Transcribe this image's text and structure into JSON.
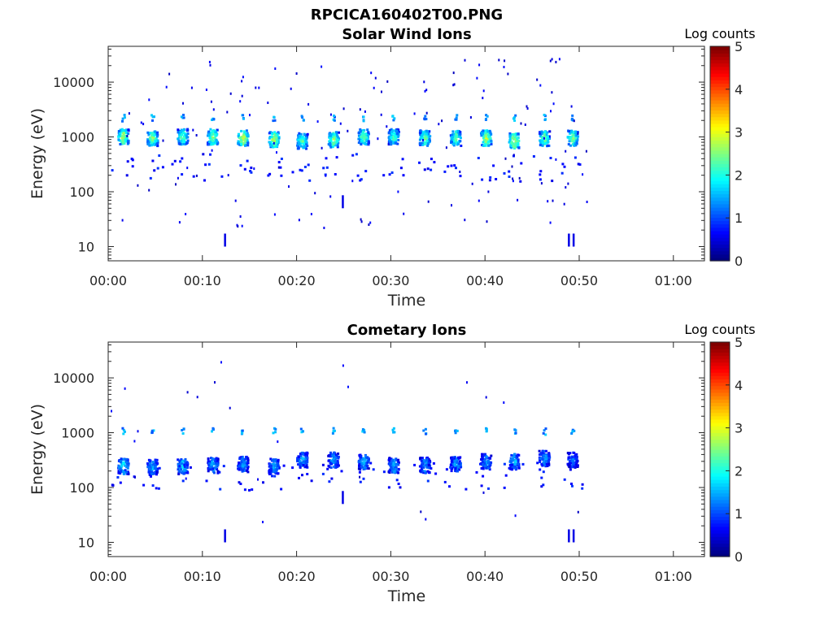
{
  "figure": {
    "title": "RPCICA160402T00.PNG"
  },
  "chart_data": [
    {
      "type": "heatmap",
      "title": "Solar Wind Ions",
      "xlabel": "Time",
      "ylabel": "Energy (eV)",
      "x_ticks": [
        "00:00",
        "00:10",
        "00:20",
        "00:30",
        "00:40",
        "00:50",
        "01:00"
      ],
      "x_tick_minutes": [
        0,
        10,
        20,
        30,
        40,
        50,
        60
      ],
      "xlim_minutes": [
        0,
        63.3
      ],
      "y_scale": "log",
      "ylim": [
        5.5,
        45000
      ],
      "y_ticks": [
        "10",
        "100",
        "1000",
        "10000"
      ],
      "y_tick_values": [
        10,
        100,
        1000,
        10000
      ],
      "colorbar": {
        "label": "Log counts",
        "range": [
          0,
          5
        ],
        "ticks": [
          "0",
          "1",
          "2",
          "3",
          "4",
          "5"
        ]
      },
      "colormap": "jet",
      "grid": false,
      "data_extent_minutes": [
        0,
        51
      ],
      "bursts": [
        {
          "t": 1.5,
          "e": 950,
          "v": 3.0
        },
        {
          "t": 4.6,
          "e": 900,
          "v": 2.8
        },
        {
          "t": 7.8,
          "e": 950,
          "v": 2.6
        },
        {
          "t": 11.0,
          "e": 950,
          "v": 2.8
        },
        {
          "t": 14.2,
          "e": 900,
          "v": 3.2
        },
        {
          "t": 17.5,
          "e": 850,
          "v": 3.0
        },
        {
          "t": 20.5,
          "e": 800,
          "v": 2.5
        },
        {
          "t": 23.8,
          "e": 850,
          "v": 2.8
        },
        {
          "t": 27.0,
          "e": 950,
          "v": 2.6
        },
        {
          "t": 30.2,
          "e": 950,
          "v": 2.4
        },
        {
          "t": 33.5,
          "e": 900,
          "v": 2.6
        },
        {
          "t": 36.8,
          "e": 900,
          "v": 2.5
        },
        {
          "t": 40.0,
          "e": 900,
          "v": 3.0
        },
        {
          "t": 43.0,
          "e": 800,
          "v": 3.1
        },
        {
          "t": 46.2,
          "e": 880,
          "v": 2.6
        },
        {
          "t": 49.2,
          "e": 900,
          "v": 2.7
        }
      ],
      "seed": 7
    },
    {
      "type": "heatmap",
      "title": "Cometary Ions",
      "xlabel": "Time",
      "ylabel": "Energy (eV)",
      "x_ticks": [
        "00:00",
        "00:10",
        "00:20",
        "00:30",
        "00:40",
        "00:50",
        "01:00"
      ],
      "x_tick_minutes": [
        0,
        10,
        20,
        30,
        40,
        50,
        60
      ],
      "xlim_minutes": [
        0,
        63.3
      ],
      "y_scale": "log",
      "ylim": [
        5.5,
        45000
      ],
      "y_ticks": [
        "10",
        "100",
        "1000",
        "10000"
      ],
      "y_tick_values": [
        10,
        100,
        1000,
        10000
      ],
      "colorbar": {
        "label": "Log counts",
        "range": [
          0,
          5
        ],
        "ticks": [
          "0",
          "1",
          "2",
          "3",
          "4",
          "5"
        ]
      },
      "colormap": "jet",
      "grid": false,
      "data_extent_minutes": [
        0,
        51
      ],
      "bursts": [
        {
          "t": 1.5,
          "e": 230,
          "v": 1.9
        },
        {
          "t": 4.6,
          "e": 220,
          "v": 1.6
        },
        {
          "t": 7.8,
          "e": 230,
          "v": 1.8
        },
        {
          "t": 11.0,
          "e": 240,
          "v": 1.6
        },
        {
          "t": 14.2,
          "e": 250,
          "v": 1.5
        },
        {
          "t": 17.5,
          "e": 230,
          "v": 1.6
        },
        {
          "t": 20.5,
          "e": 300,
          "v": 1.6
        },
        {
          "t": 23.8,
          "e": 300,
          "v": 1.5
        },
        {
          "t": 27.0,
          "e": 280,
          "v": 1.7
        },
        {
          "t": 30.2,
          "e": 240,
          "v": 1.6
        },
        {
          "t": 33.5,
          "e": 240,
          "v": 1.5
        },
        {
          "t": 36.8,
          "e": 250,
          "v": 1.5
        },
        {
          "t": 40.0,
          "e": 280,
          "v": 1.5
        },
        {
          "t": 43.0,
          "e": 280,
          "v": 1.6
        },
        {
          "t": 46.2,
          "e": 320,
          "v": 1.5
        },
        {
          "t": 49.2,
          "e": 300,
          "v": 1.2
        }
      ],
      "secondary_bursts_energy": 1000,
      "seed": 13
    }
  ]
}
